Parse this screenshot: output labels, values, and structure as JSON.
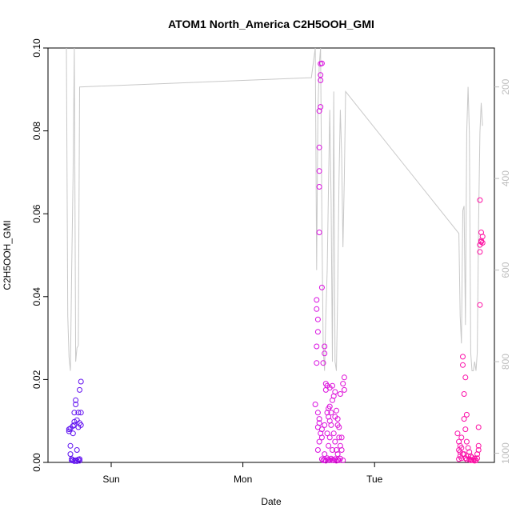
{
  "chart_data": {
    "type": "scatter",
    "title": "ATOM1 North_America C2H5OOH_GMI",
    "xlabel": "Date",
    "ylabel": "C2H5OOH_GMI",
    "x_ticks": [
      "Sun",
      "Mon",
      "Tue"
    ],
    "ylim": [
      0,
      0.1
    ],
    "y_ticks": [
      "0.00",
      "0.02",
      "0.04",
      "0.06",
      "0.08",
      "0.10"
    ],
    "right_axis": {
      "quantity": "pressure",
      "reversed": true,
      "ticks": [
        "200",
        "400",
        "600",
        "800",
        "1000"
      ]
    },
    "x_unit": "days",
    "y_tick_values": [
      0,
      0.02,
      0.04,
      0.06,
      0.08,
      0.1
    ],
    "right_tick_values": [
      200,
      400,
      600,
      800,
      1000
    ],
    "x_tick_values": [
      0,
      1,
      2
    ],
    "x_domain": [
      -0.48,
      2.91
    ],
    "right_domain": [
      115,
      1020
    ],
    "grid": false,
    "legend": "none",
    "colors": {
      "point_start": "#5a10f0",
      "point_mid": "#d010f0",
      "point_end": "#ff10a0",
      "pressure_line": "#c8c8c8"
    },
    "series": [
      {
        "values": [
          [
            -0.32,
            0.008
          ],
          [
            -0.32,
            0.0075
          ],
          [
            -0.31,
            0.0082
          ],
          [
            -0.31,
            0.004
          ],
          [
            -0.31,
            0.002
          ],
          [
            -0.3,
            0.0005
          ],
          [
            -0.3,
            0.0008
          ],
          [
            -0.29,
            0.007
          ],
          [
            -0.29,
            0.0088
          ],
          [
            -0.28,
            0.009
          ],
          [
            -0.28,
            0.0098
          ],
          [
            -0.28,
            0.012
          ],
          [
            -0.27,
            0.015
          ],
          [
            -0.27,
            0.014
          ],
          [
            -0.27,
            0.0005
          ],
          [
            -0.26,
            0.003
          ],
          [
            -0.26,
            0.0003
          ],
          [
            -0.26,
            0.0102
          ],
          [
            -0.25,
            0.0085
          ],
          [
            -0.25,
            0.012
          ],
          [
            -0.24,
            0.0095
          ],
          [
            -0.24,
            0.0008
          ],
          [
            -0.24,
            0.0175
          ],
          [
            -0.23,
            0.0195
          ],
          [
            -0.23,
            0.012
          ],
          [
            -0.23,
            0.009
          ],
          [
            -0.29,
            0.0005
          ],
          [
            -0.28,
            0.0003
          ],
          [
            -0.25,
            0.0007
          ],
          [
            -0.24,
            0.0004
          ],
          [
            1.55,
            0.014
          ],
          [
            1.56,
            0.0392
          ],
          [
            1.56,
            0.037
          ],
          [
            1.57,
            0.0345
          ],
          [
            1.57,
            0.0315
          ],
          [
            1.56,
            0.028
          ],
          [
            1.56,
            0.024
          ],
          [
            1.57,
            0.0085
          ],
          [
            1.57,
            0.012
          ],
          [
            1.58,
            0.0105
          ],
          [
            1.58,
            0.0555
          ],
          [
            1.58,
            0.0665
          ],
          [
            1.58,
            0.0703
          ],
          [
            1.58,
            0.076
          ],
          [
            1.58,
            0.0848
          ],
          [
            1.59,
            0.0858
          ],
          [
            1.59,
            0.0922
          ],
          [
            1.59,
            0.0935
          ],
          [
            1.59,
            0.0962
          ],
          [
            1.6,
            0.0963
          ],
          [
            1.6,
            0.0422
          ],
          [
            1.61,
            0.024
          ],
          [
            1.62,
            0.028
          ],
          [
            1.62,
            0.0263
          ],
          [
            1.63,
            0.019
          ],
          [
            1.63,
            0.0175
          ],
          [
            1.64,
            0.0185
          ],
          [
            1.64,
            0.012
          ],
          [
            1.65,
            0.013
          ],
          [
            1.65,
            0.011
          ],
          [
            1.66,
            0.018
          ],
          [
            1.66,
            0.0135
          ],
          [
            1.67,
            0.012
          ],
          [
            1.68,
            0.0185
          ],
          [
            1.68,
            0.015
          ],
          [
            1.69,
            0.016
          ],
          [
            1.7,
            0.017
          ],
          [
            1.71,
            0.0125
          ],
          [
            1.72,
            0.0105
          ],
          [
            1.73,
            0.0085
          ],
          [
            1.74,
            0.0165
          ],
          [
            1.76,
            0.019
          ],
          [
            1.77,
            0.0205
          ],
          [
            1.77,
            0.0175
          ],
          [
            1.76,
            0.0005
          ],
          [
            1.6,
            0.0008
          ],
          [
            1.61,
            0.0005
          ],
          [
            1.62,
            0.0006
          ],
          [
            1.63,
            0.0004
          ],
          [
            1.64,
            0.001
          ],
          [
            1.65,
            0.0007
          ],
          [
            1.66,
            0.0005
          ],
          [
            1.67,
            0.0009
          ],
          [
            1.68,
            0.0006
          ],
          [
            1.69,
            0.0005
          ],
          [
            1.7,
            0.0008
          ],
          [
            1.71,
            0.0004
          ],
          [
            1.72,
            0.0006
          ],
          [
            1.73,
            0.0005
          ],
          [
            1.74,
            0.0009
          ],
          [
            1.57,
            0.003
          ],
          [
            1.58,
            0.005
          ],
          [
            1.59,
            0.007
          ],
          [
            1.62,
            0.002
          ],
          [
            1.65,
            0.004
          ],
          [
            1.66,
            0.006
          ],
          [
            1.68,
            0.003
          ],
          [
            1.7,
            0.005
          ],
          [
            1.72,
            0.002
          ],
          [
            1.74,
            0.004
          ],
          [
            1.75,
            0.006
          ],
          [
            1.62,
            0.009
          ],
          [
            1.64,
            0.007
          ],
          [
            1.67,
            0.009
          ],
          [
            1.69,
            0.007
          ],
          [
            1.71,
            0.003
          ],
          [
            1.73,
            0.006
          ],
          [
            1.75,
            0.003
          ],
          [
            1.58,
            0.0095
          ],
          [
            1.6,
            0.008
          ],
          [
            1.66,
            0.01
          ],
          [
            1.7,
            0.011
          ],
          [
            1.72,
            0.009
          ],
          [
            1.6,
            0.006
          ],
          [
            2.63,
            0.007
          ],
          [
            2.64,
            0.005
          ],
          [
            2.64,
            0.003
          ],
          [
            2.65,
            0.0015
          ],
          [
            2.65,
            0.004
          ],
          [
            2.66,
            0.006
          ],
          [
            2.66,
            0.0035
          ],
          [
            2.67,
            0.0255
          ],
          [
            2.67,
            0.0235
          ],
          [
            2.68,
            0.0165
          ],
          [
            2.68,
            0.0105
          ],
          [
            2.69,
            0.0205
          ],
          [
            2.69,
            0.008
          ],
          [
            2.7,
            0.0115
          ],
          [
            2.7,
            0.005
          ],
          [
            2.71,
            0.0035
          ],
          [
            2.71,
            0.0015
          ],
          [
            2.72,
            0.0025
          ],
          [
            2.72,
            0.0008
          ],
          [
            2.73,
            0.0005
          ],
          [
            2.74,
            0.0006
          ],
          [
            2.75,
            0.0005
          ],
          [
            2.76,
            0.0004
          ],
          [
            2.77,
            0.0005
          ],
          [
            2.78,
            0.001
          ],
          [
            2.79,
            0.003
          ],
          [
            2.79,
            0.004
          ],
          [
            2.79,
            0.0085
          ],
          [
            2.8,
            0.038
          ],
          [
            2.8,
            0.0508
          ],
          [
            2.8,
            0.0525
          ],
          [
            2.81,
            0.0532
          ],
          [
            2.81,
            0.0535
          ],
          [
            2.81,
            0.0555
          ],
          [
            2.82,
            0.0545
          ],
          [
            2.82,
            0.053
          ],
          [
            2.8,
            0.0633
          ],
          [
            2.64,
            0.0008
          ],
          [
            2.66,
            0.001
          ],
          [
            2.68,
            0.002
          ],
          [
            2.7,
            0.0007
          ],
          [
            2.73,
            0.0015
          ],
          [
            2.74,
            0.0012
          ],
          [
            2.76,
            0.0009
          ],
          [
            2.78,
            0.002
          ],
          [
            2.65,
            0.0025
          ],
          [
            2.67,
            0.002
          ],
          [
            2.69,
            0.001
          ]
        ]
      }
    ],
    "pressure_series": {
      "values": [
        [
          -0.34,
          115
        ],
        [
          -0.33,
          700
        ],
        [
          -0.32,
          790
        ],
        [
          -0.31,
          820
        ],
        [
          -0.3,
          600
        ],
        [
          -0.29,
          400
        ],
        [
          -0.28,
          115
        ],
        [
          -0.27,
          800
        ],
        [
          -0.26,
          770
        ],
        [
          -0.25,
          765
        ],
        [
          -0.24,
          200
        ],
        [
          1.5,
          180
        ],
        [
          1.52,
          180
        ],
        [
          1.55,
          115
        ],
        [
          1.56,
          600
        ],
        [
          1.57,
          250
        ],
        [
          1.58,
          150
        ],
        [
          1.59,
          115
        ],
        [
          1.6,
          500
        ],
        [
          1.61,
          770
        ],
        [
          1.62,
          820
        ],
        [
          1.63,
          700
        ],
        [
          1.64,
          600
        ],
        [
          1.65,
          420
        ],
        [
          1.66,
          250
        ],
        [
          1.67,
          450
        ],
        [
          1.68,
          800
        ],
        [
          1.69,
          210
        ],
        [
          1.7,
          800
        ],
        [
          1.71,
          820
        ],
        [
          1.72,
          650
        ],
        [
          1.73,
          400
        ],
        [
          1.74,
          250
        ],
        [
          1.75,
          350
        ],
        [
          1.76,
          550
        ],
        [
          1.77,
          400
        ],
        [
          1.78,
          210
        ],
        [
          2.64,
          520
        ],
        [
          2.65,
          700
        ],
        [
          2.66,
          760
        ],
        [
          2.67,
          470
        ],
        [
          2.68,
          460
        ],
        [
          2.69,
          720
        ],
        [
          2.7,
          300
        ],
        [
          2.71,
          200
        ],
        [
          2.72,
          300
        ],
        [
          2.73,
          780
        ],
        [
          2.74,
          820
        ],
        [
          2.75,
          820
        ],
        [
          2.76,
          800
        ],
        [
          2.77,
          820
        ],
        [
          2.78,
          780
        ],
        [
          2.79,
          500
        ],
        [
          2.8,
          300
        ],
        [
          2.81,
          235
        ],
        [
          2.82,
          285
        ]
      ]
    }
  }
}
